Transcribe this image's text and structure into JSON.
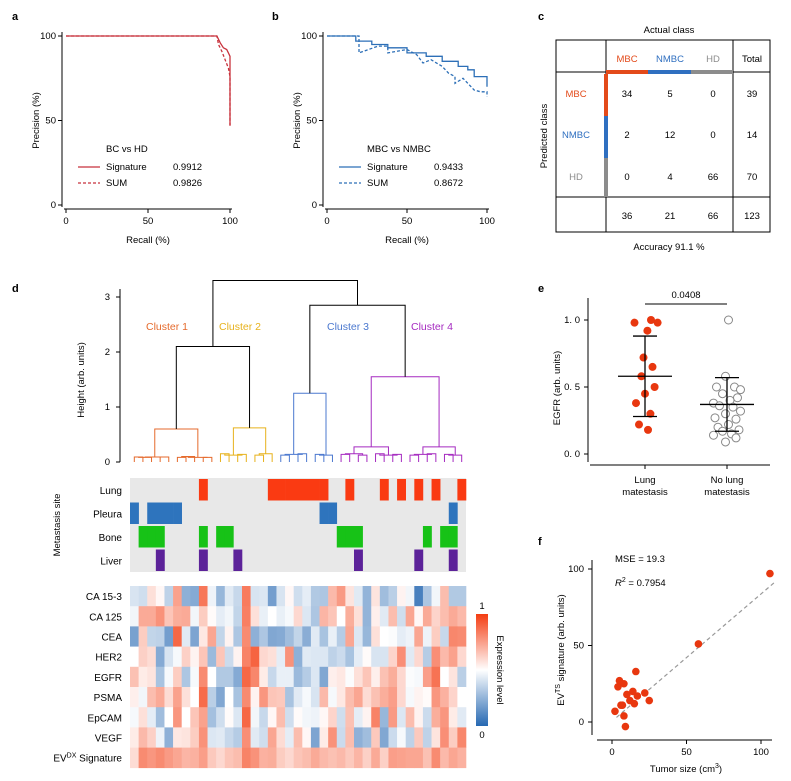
{
  "colors": {
    "red": "#c8323c",
    "blue": "#2c6fb7",
    "mbc": "#e34a1a",
    "nmbc": "#2f6fc0",
    "hd": "#8c8c8c",
    "grey": "#e8e8e8",
    "c1": "#e56a2c",
    "c2": "#e7b21c",
    "c3": "#4b78cf",
    "c4": "#a52ac0",
    "lung": "#fa3a12",
    "pleura": "#2e74bd",
    "bone": "#17c217",
    "liver": "#5c2299",
    "dot": "#e8370f"
  },
  "panels": {
    "a": "a",
    "b": "b",
    "c": "c",
    "d": "d",
    "e": "e",
    "f": "f"
  },
  "chart_data": [
    {
      "panel": "a",
      "type": "line",
      "xlabel": "Recall (%)",
      "ylabel": "Precision (%)",
      "xticks": [
        "0",
        "50",
        "100"
      ],
      "yticks": [
        "0",
        "50",
        "100"
      ],
      "xlim": [
        0,
        100
      ],
      "ylim": [
        0,
        100
      ],
      "legend_title": "BC vs HD",
      "series": [
        {
          "name": "Signature",
          "value": "0.9912",
          "points": [
            [
              0,
              100
            ],
            [
              92,
              100
            ],
            [
              94,
              96
            ],
            [
              96,
              93
            ],
            [
              98,
              92
            ],
            [
              99,
              90
            ],
            [
              100,
              88
            ],
            [
              100,
              47
            ]
          ]
        },
        {
          "name": "SUM",
          "value": "0.9826",
          "points": [
            [
              0,
              100
            ],
            [
              92,
              100
            ],
            [
              93,
              95
            ],
            [
              95,
              91
            ],
            [
              97,
              86
            ],
            [
              99,
              81
            ],
            [
              100,
              76
            ],
            [
              100,
              47
            ]
          ]
        }
      ]
    },
    {
      "panel": "b",
      "type": "line",
      "xlabel": "Recall (%)",
      "ylabel": "Precision (%)",
      "xticks": [
        "0",
        "50",
        "100"
      ],
      "yticks": [
        "0",
        "50",
        "100"
      ],
      "xlim": [
        0,
        100
      ],
      "ylim": [
        0,
        100
      ],
      "legend_title": "MBC vs NMBC",
      "series": [
        {
          "name": "Signature",
          "value": "0.9433",
          "points": [
            [
              0,
              100
            ],
            [
              18,
              100
            ],
            [
              18,
              97
            ],
            [
              28,
              97
            ],
            [
              28,
              95
            ],
            [
              38,
              95
            ],
            [
              38,
              93
            ],
            [
              50,
              93
            ],
            [
              50,
              90
            ],
            [
              62,
              90
            ],
            [
              62,
              88
            ],
            [
              72,
              88
            ],
            [
              72,
              85
            ],
            [
              82,
              85
            ],
            [
              82,
              82
            ],
            [
              88,
              82
            ],
            [
              88,
              80
            ],
            [
              92,
              80
            ],
            [
              92,
              76
            ],
            [
              100,
              76
            ],
            [
              100,
              70
            ]
          ]
        },
        {
          "name": "SUM",
          "value": "0.8672",
          "points": [
            [
              0,
              100
            ],
            [
              20,
              100
            ],
            [
              20,
              90
            ],
            [
              26,
              92
            ],
            [
              32,
              94
            ],
            [
              38,
              94
            ],
            [
              38,
              90
            ],
            [
              50,
              92
            ],
            [
              56,
              89
            ],
            [
              60,
              84
            ],
            [
              65,
              86
            ],
            [
              72,
              82
            ],
            [
              76,
              78
            ],
            [
              80,
              76
            ],
            [
              80,
              72
            ],
            [
              85,
              75
            ],
            [
              88,
              72
            ],
            [
              92,
              68
            ],
            [
              96,
              67
            ],
            [
              100,
              67
            ],
            [
              100,
              64
            ]
          ]
        }
      ]
    },
    {
      "panel": "c",
      "type": "table",
      "title": "Actual class",
      "row_title": "Predicted class",
      "columns": [
        "MBC",
        "NMBC",
        "HD",
        "Total"
      ],
      "rows": [
        {
          "label": "MBC",
          "values": [
            "34",
            "5",
            "0",
            "39"
          ]
        },
        {
          "label": "NMBC",
          "values": [
            "2",
            "12",
            "0",
            "14"
          ]
        },
        {
          "label": "HD",
          "values": [
            "0",
            "4",
            "66",
            "70"
          ]
        }
      ],
      "totals": [
        "36",
        "21",
        "66",
        "123"
      ],
      "accuracy": "Accuracy 91.1 %"
    },
    {
      "panel": "d",
      "type": "heatmap",
      "ylabel": "Height (arb. units)",
      "yticks": [
        "0",
        "1",
        "2",
        "3"
      ],
      "clusters": [
        "Cluster 1",
        "Cluster 2",
        "Cluster 3",
        "Cluster 4"
      ],
      "metastasis_label": "Metastasis site",
      "sites": [
        "Lung",
        "Pleura",
        "Bone",
        "Liver"
      ],
      "site_matrix": [
        [
          0,
          0,
          0,
          0,
          0,
          0,
          0,
          0,
          1,
          0,
          0,
          0,
          0,
          0,
          0,
          0,
          1,
          1,
          1,
          1,
          1,
          1,
          1,
          0,
          0,
          1,
          0,
          0,
          0,
          1,
          0,
          1,
          0,
          1,
          0,
          1,
          0,
          0,
          1
        ],
        [
          1,
          0,
          1,
          1,
          1,
          1,
          0,
          0,
          0,
          0,
          0,
          0,
          0,
          0,
          0,
          0,
          0,
          0,
          0,
          0,
          0,
          0,
          1,
          1,
          0,
          0,
          0,
          0,
          0,
          0,
          0,
          0,
          0,
          0,
          0,
          0,
          0,
          1,
          0
        ],
        [
          0,
          1,
          1,
          1,
          0,
          0,
          0,
          0,
          1,
          0,
          1,
          1,
          0,
          0,
          0,
          0,
          0,
          0,
          0,
          0,
          0,
          0,
          0,
          0,
          1,
          1,
          1,
          0,
          0,
          0,
          0,
          0,
          0,
          0,
          1,
          0,
          1,
          1,
          0
        ],
        [
          0,
          0,
          0,
          1,
          0,
          0,
          0,
          0,
          1,
          0,
          0,
          0,
          1,
          0,
          0,
          0,
          0,
          0,
          0,
          0,
          0,
          0,
          0,
          0,
          0,
          0,
          1,
          0,
          0,
          0,
          0,
          0,
          0,
          1,
          0,
          0,
          0,
          1,
          0
        ]
      ],
      "markers": [
        "CA 15-3",
        "CA 125",
        "CEA",
        "HER2",
        "EGFR",
        "PSMA",
        "EpCAM",
        "VEGF",
        "EV"
      ],
      "signature_sup": "DX",
      "signature_suffix": "Signature",
      "colorbar_label": "Expression level",
      "colorbar_ticks": [
        "1",
        "0"
      ],
      "expression": [
        [
          0.41,
          0.39,
          0.58,
          0.52,
          0.35,
          0.74,
          0.24,
          0.22,
          0.85,
          0.46,
          0.26,
          0.43,
          0.37,
          0.84,
          0.41,
          0.42,
          0.18,
          0.41,
          0.52,
          0.39,
          0.44,
          0.32,
          0.31,
          0.68,
          0.76,
          0.57,
          0.43,
          0.25,
          0.57,
          0.28,
          0.34,
          0.53,
          0.47,
          0.08,
          0.31,
          0.47,
          0.67,
          0.32,
          0.32
        ],
        [
          0.47,
          0.72,
          0.72,
          0.78,
          0.65,
          0.71,
          0.72,
          0.47,
          0.63,
          0.51,
          0.44,
          0.47,
          0.36,
          0.83,
          0.58,
          0.45,
          0.5,
          0.45,
          0.48,
          0.6,
          0.42,
          0.31,
          0.69,
          0.65,
          0.5,
          0.71,
          0.58,
          0.25,
          0.54,
          0.43,
          0.67,
          0.39,
          0.73,
          0.52,
          0.72,
          0.61,
          0.67,
          0.72,
          0.68
        ],
        [
          0.19,
          0.63,
          0.36,
          0.35,
          0.18,
          0.89,
          0.43,
          0.2,
          0.56,
          0.73,
          0.36,
          0.53,
          0.31,
          0.8,
          0.24,
          0.31,
          0.21,
          0.22,
          0.28,
          0.36,
          0.23,
          0.43,
          0.3,
          0.45,
          0.33,
          0.73,
          0.42,
          0.26,
          0.58,
          0.5,
          0.49,
          0.44,
          0.46,
          0.73,
          0.46,
          0.63,
          0.37,
          0.81,
          0.8
        ],
        [
          0.5,
          0.62,
          0.59,
          0.22,
          0.41,
          0.48,
          0.62,
          0.53,
          0.65,
          0.27,
          0.65,
          0.38,
          0.53,
          0.82,
          0.9,
          0.6,
          0.58,
          0.44,
          0.78,
          0.24,
          0.43,
          0.42,
          0.42,
          0.35,
          0.38,
          0.3,
          0.44,
          0.51,
          0.41,
          0.41,
          0.61,
          0.79,
          0.43,
          0.6,
          0.33,
          0.79,
          0.68,
          0.74,
          0.6
        ],
        [
          0.66,
          0.55,
          0.57,
          0.3,
          0.48,
          0.63,
          0.31,
          0.48,
          0.8,
          0.5,
          0.32,
          0.32,
          0.22,
          0.89,
          0.81,
          0.55,
          0.37,
          0.45,
          0.45,
          0.27,
          0.33,
          0.42,
          0.21,
          0.54,
          0.56,
          0.49,
          0.58,
          0.65,
          0.54,
          0.66,
          0.71,
          0.6,
          0.49,
          0.48,
          0.75,
          0.86,
          0.5,
          0.57,
          0.34
        ],
        [
          0.54,
          0.47,
          0.67,
          0.72,
          0.59,
          0.74,
          0.58,
          0.5,
          0.88,
          0.34,
          0.21,
          0.5,
          0.3,
          0.8,
          0.53,
          0.77,
          0.65,
          0.64,
          0.3,
          0.43,
          0.48,
          0.41,
          0.68,
          0.48,
          0.56,
          0.67,
          0.73,
          0.59,
          0.66,
          0.71,
          0.75,
          0.6,
          0.48,
          0.53,
          0.51,
          0.77,
          0.7,
          0.61,
          0.5
        ],
        [
          0.48,
          0.58,
          0.44,
          0.28,
          0.5,
          0.77,
          0.5,
          0.65,
          0.74,
          0.29,
          0.39,
          0.51,
          0.42,
          0.89,
          0.47,
          0.37,
          0.52,
          0.67,
          0.39,
          0.51,
          0.47,
          0.46,
          0.52,
          0.61,
          0.39,
          0.66,
          0.44,
          0.53,
          0.82,
          0.26,
          0.76,
          0.42,
          0.67,
          0.53,
          0.38,
          0.71,
          0.77,
          0.55,
          0.43
        ],
        [
          0.55,
          0.68,
          0.62,
          0.46,
          0.24,
          0.56,
          0.57,
          0.63,
          0.78,
          0.42,
          0.43,
          0.37,
          0.33,
          0.79,
          0.43,
          0.39,
          0.73,
          0.59,
          0.44,
          0.67,
          0.52,
          0.2,
          0.55,
          0.78,
          0.38,
          0.67,
          0.24,
          0.28,
          0.64,
          0.21,
          0.38,
          0.48,
          0.35,
          0.64,
          0.35,
          0.57,
          0.79,
          0.63,
          0.81
        ],
        [
          0.59,
          0.8,
          0.77,
          0.8,
          0.76,
          0.73,
          0.69,
          0.7,
          0.75,
          0.64,
          0.6,
          0.65,
          0.67,
          0.82,
          0.78,
          0.7,
          0.71,
          0.63,
          0.6,
          0.65,
          0.67,
          0.72,
          0.68,
          0.66,
          0.68,
          0.64,
          0.69,
          0.62,
          0.72,
          0.62,
          0.75,
          0.74,
          0.73,
          0.73,
          0.66,
          0.8,
          0.68,
          0.73,
          0.7
        ]
      ]
    },
    {
      "panel": "e",
      "type": "scatter",
      "ylabel": "EGFR (arb. units)",
      "yticks": [
        "0. 0",
        "0. 5",
        "1. 0"
      ],
      "ylim": [
        0,
        1.1
      ],
      "pvalue": "0.0408",
      "groups": [
        {
          "name_line1": "Lung",
          "name_line2": "matestasis",
          "mean": 0.58,
          "sd_low": 0.28,
          "sd_high": 0.88,
          "points": [
            [
              -0.35,
              0.98
            ],
            [
              0.2,
              1.0
            ],
            [
              0.42,
              0.98
            ],
            [
              0.08,
              0.92
            ],
            [
              -0.05,
              0.72
            ],
            [
              0.25,
              0.65
            ],
            [
              -0.12,
              0.58
            ],
            [
              0.32,
              0.5
            ],
            [
              0.0,
              0.45
            ],
            [
              -0.3,
              0.38
            ],
            [
              0.18,
              0.3
            ],
            [
              -0.2,
              0.22
            ],
            [
              0.1,
              0.18
            ]
          ]
        },
        {
          "name_line1": "No lung",
          "name_line2": "matestasis",
          "mean": 0.37,
          "sd_low": 0.17,
          "sd_high": 0.57,
          "points": [
            [
              0.05,
              1.0
            ],
            [
              -0.05,
              0.58
            ],
            [
              -0.35,
              0.5
            ],
            [
              0.25,
              0.5
            ],
            [
              0.45,
              0.48
            ],
            [
              -0.15,
              0.45
            ],
            [
              0.35,
              0.42
            ],
            [
              0.1,
              0.4
            ],
            [
              -0.45,
              0.38
            ],
            [
              -0.25,
              0.36
            ],
            [
              0.2,
              0.35
            ],
            [
              0.45,
              0.32
            ],
            [
              -0.05,
              0.3
            ],
            [
              -0.4,
              0.27
            ],
            [
              0.3,
              0.26
            ],
            [
              0.05,
              0.22
            ],
            [
              -0.3,
              0.2
            ],
            [
              0.4,
              0.18
            ],
            [
              -0.15,
              0.17
            ],
            [
              0.15,
              0.15
            ],
            [
              -0.45,
              0.14
            ],
            [
              0.3,
              0.12
            ],
            [
              -0.05,
              0.09
            ]
          ]
        }
      ]
    },
    {
      "panel": "f",
      "type": "scatter",
      "ylabel_prefix": "EV",
      "ylabel_sup": "TS",
      "ylabel_suffix": " signature  (arb. units)",
      "xlabel_prefix": "Tumor size (cm",
      "xlabel_sup": "3",
      "xlabel_suffix": ")",
      "xticks": [
        "0",
        "50",
        "100"
      ],
      "yticks": [
        "0",
        "50",
        "100"
      ],
      "xlim": [
        -5,
        110
      ],
      "ylim": [
        -8,
        105
      ],
      "mse": "MSE = 19.3",
      "r2_value": " = 0.7954",
      "fit": [
        [
          3,
          3
        ],
        [
          110,
          92
        ]
      ],
      "points": [
        [
          106,
          97
        ],
        [
          58,
          51
        ],
        [
          16,
          33
        ],
        [
          8,
          25
        ],
        [
          5,
          27
        ],
        [
          4,
          23
        ],
        [
          10,
          18
        ],
        [
          17,
          17
        ],
        [
          22,
          19
        ],
        [
          25,
          14
        ],
        [
          12,
          14
        ],
        [
          15,
          12
        ],
        [
          6,
          11
        ],
        [
          2,
          7
        ],
        [
          8,
          4
        ],
        [
          9,
          -3
        ],
        [
          7,
          11
        ],
        [
          14,
          20
        ]
      ]
    }
  ]
}
